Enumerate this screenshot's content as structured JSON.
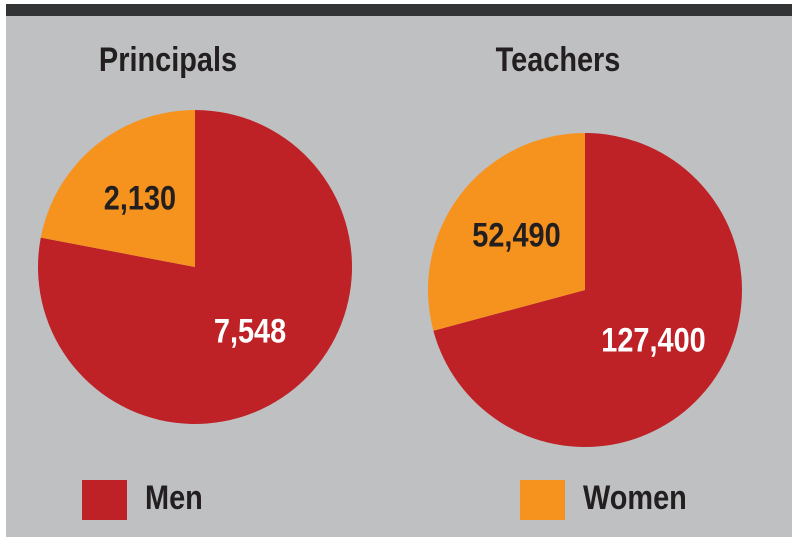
{
  "chart_data": [
    {
      "type": "pie",
      "title": "Principals",
      "values": [
        7548,
        2130
      ],
      "value_labels": [
        "7,548",
        "2,130"
      ]
    },
    {
      "type": "pie",
      "title": "Teachers",
      "values": [
        127400,
        52490
      ],
      "value_labels": [
        "127,400",
        "52,490"
      ]
    }
  ],
  "legend": [
    {
      "name": "Men",
      "color": "#be2126"
    },
    {
      "name": "Women",
      "color": "#f6931e"
    }
  ]
}
